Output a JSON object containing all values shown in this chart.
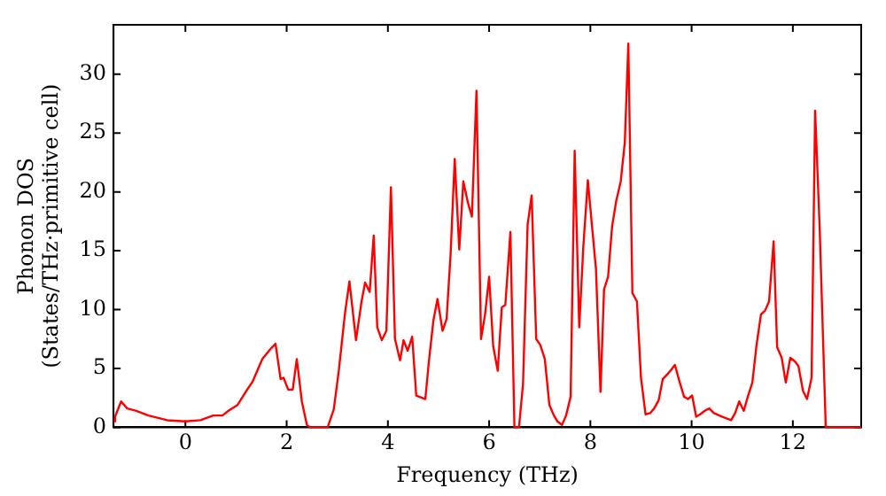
{
  "chart_data": {
    "type": "line",
    "xlabel": "Frequency (THz)",
    "ylabel": "Phonon DOS\n(States/THz·primitive cell)",
    "xlim": [
      -1.42,
      13.35
    ],
    "xticks": [
      0,
      2,
      4,
      6,
      8,
      10,
      12
    ],
    "ylim": [
      0,
      34.2
    ],
    "yticks": [
      0,
      5,
      10,
      15,
      20,
      25,
      30
    ],
    "grid": false,
    "legend": false,
    "marker": "none",
    "line_style": "solid",
    "series": [
      {
        "color": "#ff0000",
        "x": [
          -1.42,
          -1.39,
          -1.27,
          -1.15,
          -0.97,
          -0.73,
          -0.36,
          0,
          0.3,
          0.55,
          0.73,
          0.85,
          1.03,
          1.19,
          1.33,
          1.52,
          1.67,
          1.78,
          1.88,
          1.94,
          2.03,
          2.12,
          2.2,
          2.3,
          2.4,
          2.46,
          2.81,
          2.93,
          3.03,
          3.15,
          3.24,
          3.37,
          3.48,
          3.55,
          3.64,
          3.72,
          3.79,
          3.88,
          3.97,
          4.06,
          4.14,
          4.24,
          4.31,
          4.39,
          4.48,
          4.56,
          4.74,
          4.81,
          4.9,
          4.98,
          5.08,
          5.16,
          5.24,
          5.32,
          5.41,
          5.49,
          5.58,
          5.66,
          5.75,
          5.84,
          5.92,
          6.0,
          6.08,
          6.17,
          6.25,
          6.32,
          6.42,
          6.5,
          6.59,
          6.67,
          6.76,
          6.84,
          6.93,
          7.01,
          7.1,
          7.19,
          7.28,
          7.35,
          7.44,
          7.52,
          7.61,
          7.69,
          7.78,
          7.86,
          7.95,
          8.03,
          8.11,
          8.2,
          8.27,
          8.35,
          8.43,
          8.51,
          8.6,
          8.68,
          8.75,
          8.83,
          8.92,
          9.0,
          9.09,
          9.18,
          9.26,
          9.35,
          9.43,
          9.52,
          9.6,
          9.67,
          9.76,
          9.85,
          9.93,
          10.01,
          10.09,
          10.17,
          10.26,
          10.35,
          10.44,
          10.6,
          10.78,
          10.86,
          10.94,
          11.03,
          11.11,
          11.2,
          11.28,
          11.37,
          11.45,
          11.53,
          11.62,
          11.69,
          11.78,
          11.86,
          11.95,
          12.04,
          12.11,
          12.2,
          12.28,
          12.37,
          12.44,
          12.53,
          12.65,
          13.35
        ],
        "values": [
          0.5,
          0.9,
          2.2,
          1.6,
          1.4,
          1.0,
          0.6,
          0.5,
          0.6,
          1.0,
          1.0,
          1.4,
          1.9,
          3.0,
          3.9,
          5.8,
          6.6,
          7.1,
          4.1,
          4.2,
          3.2,
          3.2,
          5.8,
          2.2,
          0.2,
          0,
          0,
          1.5,
          4.8,
          9.6,
          12.4,
          7.4,
          10.7,
          12.3,
          11.5,
          16.3,
          8.5,
          7.4,
          8.2,
          20.4,
          7.5,
          5.7,
          7.4,
          6.5,
          7.7,
          2.7,
          2.4,
          5.6,
          9.1,
          10.9,
          8.2,
          9.2,
          14.8,
          22.8,
          15.1,
          20.9,
          19.1,
          17.9,
          28.6,
          7.5,
          9.6,
          12.8,
          6.9,
          4.8,
          10.2,
          10.4,
          16.6,
          0,
          0,
          3.7,
          17.2,
          19.7,
          7.5,
          7.0,
          5.8,
          1.9,
          1.0,
          0.5,
          0.2,
          1.0,
          2.6,
          23.5,
          8.5,
          15.3,
          21.0,
          17.2,
          13.5,
          3.0,
          11.7,
          12.8,
          17.1,
          19.2,
          20.9,
          24.2,
          32.6,
          11.4,
          10.7,
          4.2,
          1.1,
          1.2,
          1.6,
          2.3,
          4.1,
          4.5,
          4.9,
          5.3,
          3.9,
          2.6,
          2.4,
          2.7,
          0.9,
          1.1,
          1.4,
          1.6,
          1.2,
          0.9,
          0.6,
          1.2,
          2.2,
          1.4,
          2.6,
          3.8,
          6.9,
          9.6,
          9.9,
          10.7,
          15.8,
          6.8,
          5.9,
          3.8,
          5.9,
          5.6,
          5.2,
          3.1,
          2.4,
          4.2,
          26.9,
          16.9,
          0,
          0
        ]
      }
    ]
  }
}
